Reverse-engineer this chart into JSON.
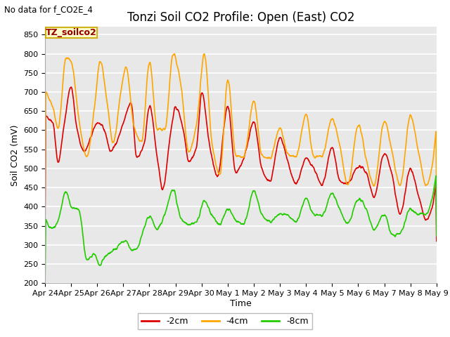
{
  "title": "Tonzi Soil CO2 Profile: Open (East) CO2",
  "subtitle": "No data for f_CO2E_4",
  "ylabel": "Soil CO2 (mV)",
  "xlabel": "Time",
  "ylim": [
    200,
    870
  ],
  "yticks": [
    200,
    250,
    300,
    350,
    400,
    450,
    500,
    550,
    600,
    650,
    700,
    750,
    800,
    850
  ],
  "xtick_labels": [
    "Apr 24",
    "Apr 25",
    "Apr 26",
    "Apr 27",
    "Apr 28",
    "Apr 29",
    "Apr 30",
    "May 1",
    "May 2",
    "May 3",
    "May 4",
    "May 5",
    "May 6",
    "May 7",
    "May 8",
    "May 9"
  ],
  "line_labels": [
    "-2cm",
    "-4cm",
    "-8cm"
  ],
  "line_colors": [
    "#dd0000",
    "#ffa500",
    "#22cc00"
  ],
  "plot_bg_color": "#e8e8e8",
  "fig_bg_color": "#ffffff",
  "grid_color": "#ffffff",
  "title_fontsize": 12,
  "axis_label_fontsize": 9,
  "tick_fontsize": 8,
  "legend_box_color": "#ffffcc",
  "legend_box_edge": "#ccaa00",
  "legend_title_color": "#990000",
  "line_width": 1.2
}
